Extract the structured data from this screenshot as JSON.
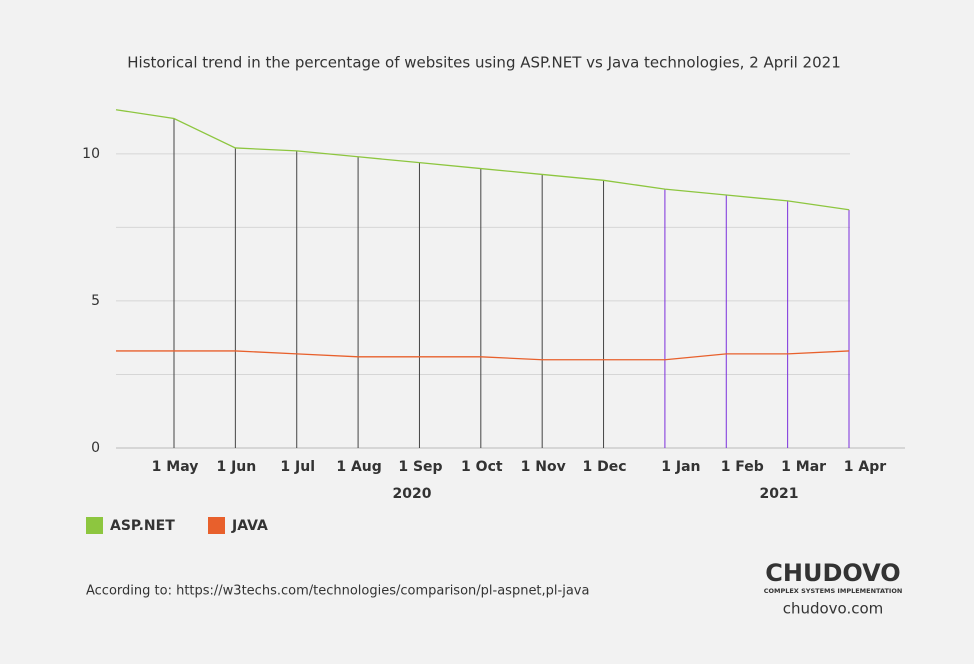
{
  "chart_data": {
    "type": "line",
    "title": "Historical trend in the percentage of websites using ASP.NET vs Java technologies, 2 April 2021",
    "categories": [
      null,
      "1 May",
      "1 Jun",
      "1 Jul",
      "1 Aug",
      "1 Sep",
      "1 Oct",
      "1 Nov",
      "1 Dec",
      "1 Jan",
      "1 Feb",
      "1 Mar",
      "1 Apr"
    ],
    "category_colors": [
      "#555555",
      "#555555",
      "#555555",
      "#555555",
      "#555555",
      "#555555",
      "#555555",
      "#555555",
      "#555555",
      "#7b2fdc",
      "#7b2fdc",
      "#7b2fdc",
      "#7b2fdc"
    ],
    "x_groups": [
      {
        "label": "2020",
        "color": "#555555"
      },
      {
        "label": "2021",
        "color": "#7b2fdc"
      }
    ],
    "series": [
      {
        "name": "ASP.NET",
        "color": "#8dc63f",
        "values": [
          11.5,
          11.2,
          10.2,
          10.1,
          9.9,
          9.7,
          9.5,
          9.3,
          9.1,
          8.8,
          8.6,
          8.4,
          8.1
        ]
      },
      {
        "name": "JAVA",
        "color": "#e8602c",
        "values": [
          3.3,
          3.3,
          3.3,
          3.2,
          3.1,
          3.1,
          3.1,
          3.0,
          3.0,
          3.0,
          3.2,
          3.2,
          3.3
        ]
      }
    ],
    "ylim": [
      0,
      12
    ],
    "yticks": [
      0,
      5,
      10
    ],
    "minor_gridlines": [
      2.5,
      7.5
    ],
    "grid": true,
    "legend": "bottom-left"
  },
  "footer": {
    "source": "According to: https://w3techs.com/technologies/comparison/pl-aspnet,pl-java",
    "logo": "CHUDOVO",
    "tagline": "COMPLEX SYSTEMS IMPLEMENTATION",
    "site": "chudovo.com"
  }
}
